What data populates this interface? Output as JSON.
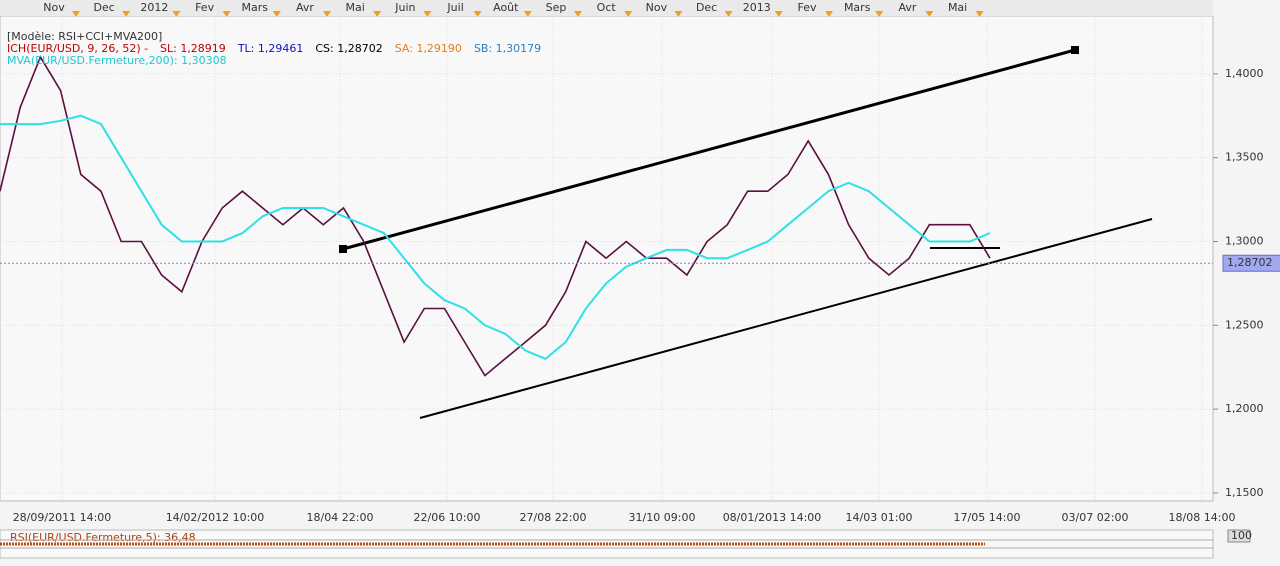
{
  "chart_data": {
    "type": "line",
    "legend_title": "[Modèle: RSI+CCI+MVA200]",
    "indicator_labels": [
      "SL: 1,28919",
      "TL: 1,29461",
      "CS: 1,28702",
      "SA: 1,29190",
      "SB: 1,30179"
    ],
    "month_labels": [
      "Nov",
      "Dec",
      "2012",
      "Fev",
      "Mars",
      "Avr",
      "Mai",
      "Juin",
      "Juil",
      "Août",
      "Sep",
      "Oct",
      "Nov",
      "Dec",
      "2013",
      "Fev",
      "Mars",
      "Avr",
      "Mai"
    ],
    "date_labels": [
      "28/09/2011 14:00",
      "14/02/2012 10:00",
      "18/04 22:00",
      "22/06 10:00",
      "27/08 22:00",
      "31/10 09:00",
      "08/01/2013 14:00",
      "14/03 01:00",
      "17/05 14:00",
      "03/07 02:00",
      "18/08 14:00"
    ],
    "ylim": [
      1.1452,
      1.4345
    ],
    "yticks": [
      {
        "value": 1.15,
        "label": "1,1500"
      },
      {
        "value": 1.2,
        "label": "1,2000"
      },
      {
        "value": 1.25,
        "label": "1,2500"
      },
      {
        "value": 1.3,
        "label": "1,3000"
      },
      {
        "value": 1.35,
        "label": "1,3500"
      },
      {
        "value": 1.4,
        "label": "1,4000"
      }
    ],
    "last_price": {
      "value": 1.28702,
      "label": "1,28702"
    },
    "grid": true,
    "series": [
      {
        "name": "ICH(EUR/USD, 9, 26, 52) -",
        "color": "#5a1040",
        "values": [
          1.33,
          1.38,
          1.41,
          1.39,
          1.34,
          1.33,
          1.3,
          1.3,
          1.28,
          1.27,
          1.3,
          1.32,
          1.33,
          1.32,
          1.31,
          1.32,
          1.31,
          1.32,
          1.3,
          1.27,
          1.24,
          1.26,
          1.26,
          1.24,
          1.22,
          1.23,
          1.24,
          1.25,
          1.27,
          1.3,
          1.29,
          1.3,
          1.29,
          1.29,
          1.28,
          1.3,
          1.31,
          1.33,
          1.33,
          1.34,
          1.36,
          1.34,
          1.31,
          1.29,
          1.28,
          1.29,
          1.31,
          1.31,
          1.31,
          1.29
        ]
      },
      {
        "name": "MVA(EUR/USD.Fermeture,200): 1,30308",
        "color": "#2ee0e8",
        "values": [
          1.37,
          1.37,
          1.37,
          1.372,
          1.375,
          1.37,
          1.35,
          1.33,
          1.31,
          1.3,
          1.3,
          1.3,
          1.305,
          1.315,
          1.32,
          1.32,
          1.32,
          1.315,
          1.31,
          1.305,
          1.29,
          1.275,
          1.265,
          1.26,
          1.25,
          1.245,
          1.235,
          1.23,
          1.24,
          1.26,
          1.275,
          1.285,
          1.29,
          1.295,
          1.295,
          1.29,
          1.29,
          1.295,
          1.3,
          1.31,
          1.32,
          1.33,
          1.335,
          1.33,
          1.32,
          1.31,
          1.3,
          1.3,
          1.3,
          1.305
        ]
      }
    ],
    "oscillator_label": "RSI(EUR/USD.Fermeture,5): 36,48",
    "oscillator_max_label": "100"
  }
}
